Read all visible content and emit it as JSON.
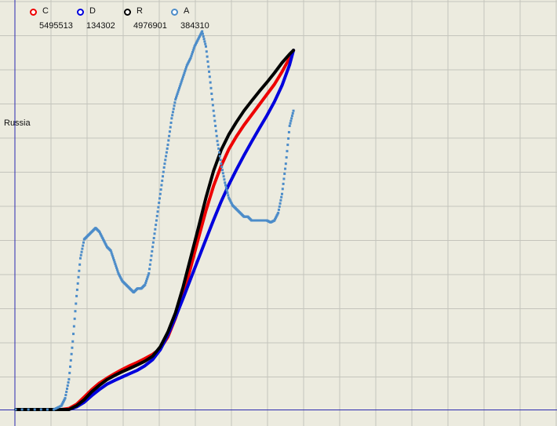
{
  "region_label": "Russia",
  "legend": [
    {
      "name": "C",
      "value": "5495513",
      "color": "#ee0000"
    },
    {
      "name": "D",
      "value": "134302",
      "color": "#0000dd"
    },
    {
      "name": "R",
      "value": "4976901",
      "color": "#000000"
    },
    {
      "name": "A",
      "value": "384310",
      "color": "#4c8cc9"
    }
  ],
  "chart_data": {
    "type": "line",
    "title": "",
    "xlabel": "",
    "ylabel": "",
    "grid": true,
    "legend_position": "top-left",
    "xlim": [
      0,
      100
    ],
    "ylim": [
      0,
      100
    ],
    "series": [
      {
        "name": "C",
        "color": "#ee0000",
        "points": [
          [
            0,
            0
          ],
          [
            12,
            0
          ],
          [
            14,
            0.3
          ],
          [
            16,
            1.4
          ],
          [
            18,
            3.3
          ],
          [
            20,
            5.3
          ],
          [
            22,
            7.0
          ],
          [
            24,
            8.3
          ],
          [
            26,
            9.5
          ],
          [
            28,
            10.6
          ],
          [
            30,
            11.6
          ],
          [
            32,
            12.5
          ],
          [
            34,
            13.5
          ],
          [
            36,
            14.6
          ],
          [
            38,
            16.1
          ],
          [
            40,
            19.2
          ],
          [
            42,
            24.2
          ],
          [
            44,
            30.2
          ],
          [
            46,
            37.6
          ],
          [
            48,
            45.2
          ],
          [
            50,
            52.6
          ],
          [
            52,
            59.1
          ],
          [
            54,
            64.4
          ],
          [
            56,
            68.8
          ],
          [
            58,
            72.2
          ],
          [
            60,
            75.2
          ],
          [
            62,
            77.9
          ],
          [
            64,
            80.6
          ],
          [
            66,
            83.3
          ],
          [
            68,
            86.0
          ],
          [
            70,
            89.3
          ],
          [
            72,
            93.0
          ],
          [
            73,
            95.0
          ]
        ]
      },
      {
        "name": "D",
        "color": "#0000dd",
        "points": [
          [
            0,
            0
          ],
          [
            14,
            0
          ],
          [
            16,
            0.7
          ],
          [
            18,
            1.9
          ],
          [
            20,
            3.7
          ],
          [
            22,
            5.3
          ],
          [
            24,
            6.7
          ],
          [
            26,
            7.7
          ],
          [
            28,
            8.6
          ],
          [
            30,
            9.5
          ],
          [
            32,
            10.4
          ],
          [
            34,
            11.6
          ],
          [
            36,
            13.2
          ],
          [
            38,
            15.8
          ],
          [
            40,
            19.7
          ],
          [
            42,
            24.4
          ],
          [
            44,
            29.4
          ],
          [
            46,
            34.6
          ],
          [
            48,
            39.8
          ],
          [
            50,
            45.0
          ],
          [
            52,
            50.1
          ],
          [
            54,
            55.0
          ],
          [
            56,
            59.4
          ],
          [
            58,
            63.4
          ],
          [
            60,
            67.2
          ],
          [
            62,
            70.8
          ],
          [
            64,
            74.3
          ],
          [
            66,
            77.7
          ],
          [
            68,
            81.4
          ],
          [
            70,
            85.7
          ],
          [
            72,
            91.2
          ],
          [
            73,
            95.0
          ]
        ]
      },
      {
        "name": "R",
        "color": "#000000",
        "points": [
          [
            0,
            0
          ],
          [
            14,
            0
          ],
          [
            16,
            1.0
          ],
          [
            18,
            2.6
          ],
          [
            20,
            4.7
          ],
          [
            22,
            6.4
          ],
          [
            24,
            7.9
          ],
          [
            26,
            9.0
          ],
          [
            28,
            10.0
          ],
          [
            30,
            10.9
          ],
          [
            32,
            11.8
          ],
          [
            34,
            12.8
          ],
          [
            36,
            14.1
          ],
          [
            38,
            16.6
          ],
          [
            40,
            20.5
          ],
          [
            42,
            25.6
          ],
          [
            44,
            32.4
          ],
          [
            46,
            40.2
          ],
          [
            48,
            48.0
          ],
          [
            50,
            56.0
          ],
          [
            52,
            63.1
          ],
          [
            54,
            68.6
          ],
          [
            56,
            72.7
          ],
          [
            58,
            76.0
          ],
          [
            60,
            79.0
          ],
          [
            62,
            81.6
          ],
          [
            64,
            84.1
          ],
          [
            66,
            86.5
          ],
          [
            68,
            89.0
          ],
          [
            70,
            91.7
          ],
          [
            72,
            94.0
          ],
          [
            73,
            95.0
          ]
        ]
      },
      {
        "name": "A",
        "color": "#4c8cc9",
        "points": [
          [
            0,
            0
          ],
          [
            10,
            0
          ],
          [
            12,
            1.0
          ],
          [
            13,
            3.0
          ],
          [
            14,
            8.0
          ],
          [
            15,
            18.0
          ],
          [
            16,
            30.0
          ],
          [
            17,
            40.0
          ],
          [
            18,
            45.0
          ],
          [
            19,
            46.0
          ],
          [
            20,
            47.0
          ],
          [
            21,
            48.0
          ],
          [
            22,
            47.0
          ],
          [
            23,
            45.0
          ],
          [
            24,
            43.0
          ],
          [
            25,
            42.0
          ],
          [
            26,
            39.0
          ],
          [
            27,
            36.0
          ],
          [
            28,
            34.0
          ],
          [
            29,
            33.0
          ],
          [
            30,
            32.0
          ],
          [
            31,
            31.0
          ],
          [
            32,
            32.0
          ],
          [
            33,
            32.0
          ],
          [
            34,
            33.0
          ],
          [
            35,
            36.0
          ],
          [
            36,
            43.0
          ],
          [
            37,
            50.0
          ],
          [
            38,
            57.0
          ],
          [
            39,
            64.0
          ],
          [
            40,
            70.0
          ],
          [
            41,
            77.0
          ],
          [
            42,
            82.0
          ],
          [
            43,
            85.0
          ],
          [
            44,
            88.0
          ],
          [
            45,
            91.0
          ],
          [
            46,
            93.0
          ],
          [
            47,
            96.0
          ],
          [
            48,
            98.0
          ],
          [
            49,
            100.0
          ],
          [
            50,
            96.0
          ],
          [
            51,
            88.0
          ],
          [
            52,
            79.0
          ],
          [
            53,
            71.0
          ],
          [
            54,
            65.0
          ],
          [
            55,
            60.0
          ],
          [
            56,
            56.0
          ],
          [
            57,
            54.0
          ],
          [
            58,
            53.0
          ],
          [
            59,
            52.0
          ],
          [
            60,
            51.0
          ],
          [
            61,
            51.0
          ],
          [
            62,
            50.0
          ],
          [
            63,
            50.0
          ],
          [
            64,
            50.0
          ],
          [
            65,
            50.0
          ],
          [
            66,
            50.0
          ],
          [
            67,
            49.5
          ],
          [
            68,
            50.0
          ],
          [
            69,
            52.0
          ],
          [
            70,
            57.0
          ],
          [
            71,
            65.0
          ],
          [
            72,
            75.0
          ],
          [
            73,
            79.0
          ]
        ]
      }
    ]
  }
}
